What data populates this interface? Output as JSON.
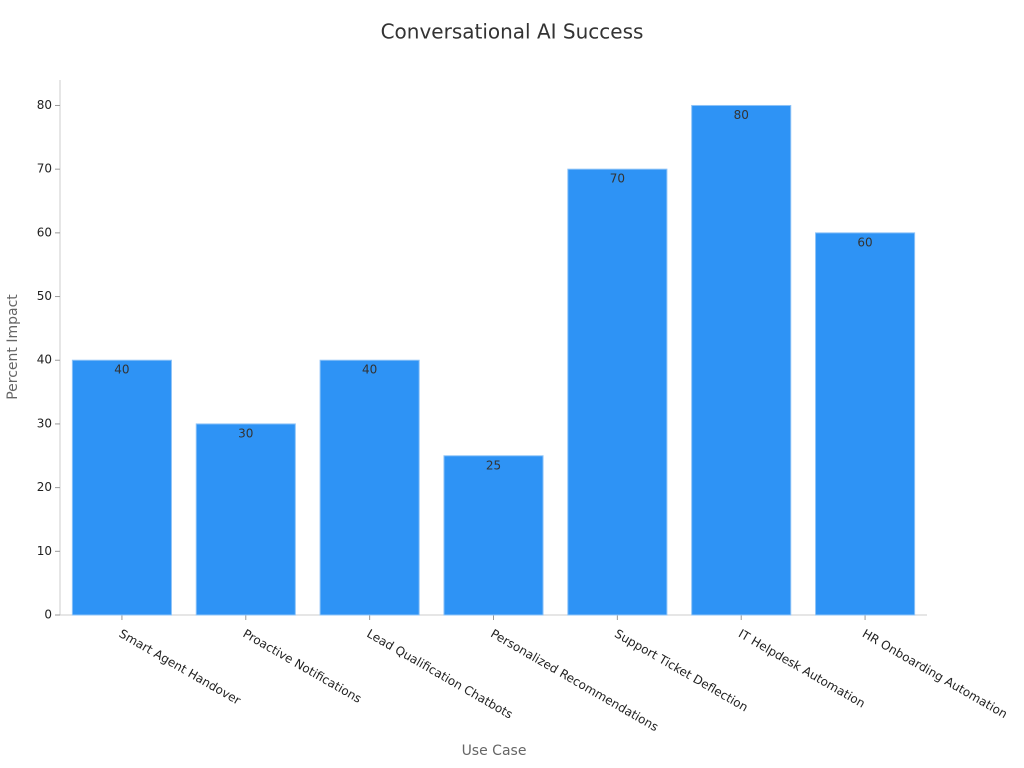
{
  "chart_data": {
    "type": "bar",
    "title": "Conversational AI Success",
    "x_label": "Use Case",
    "y_label": "Percent Impact",
    "categories": [
      "Smart Agent Handover",
      "Proactive Notifications",
      "Lead Qualification Chatbots",
      "Personalized Recommendations",
      "Support Ticket Deflection",
      "IT Helpdesk Automation",
      "HR Onboarding Automation"
    ],
    "values": [
      40,
      30,
      40,
      25,
      70,
      80,
      60
    ],
    "color": "#2e93f5",
    "ylim": [
      0,
      84
    ],
    "yticks": [
      0,
      10,
      20,
      30,
      40,
      50,
      60,
      70,
      80
    ],
    "grid": false
  }
}
